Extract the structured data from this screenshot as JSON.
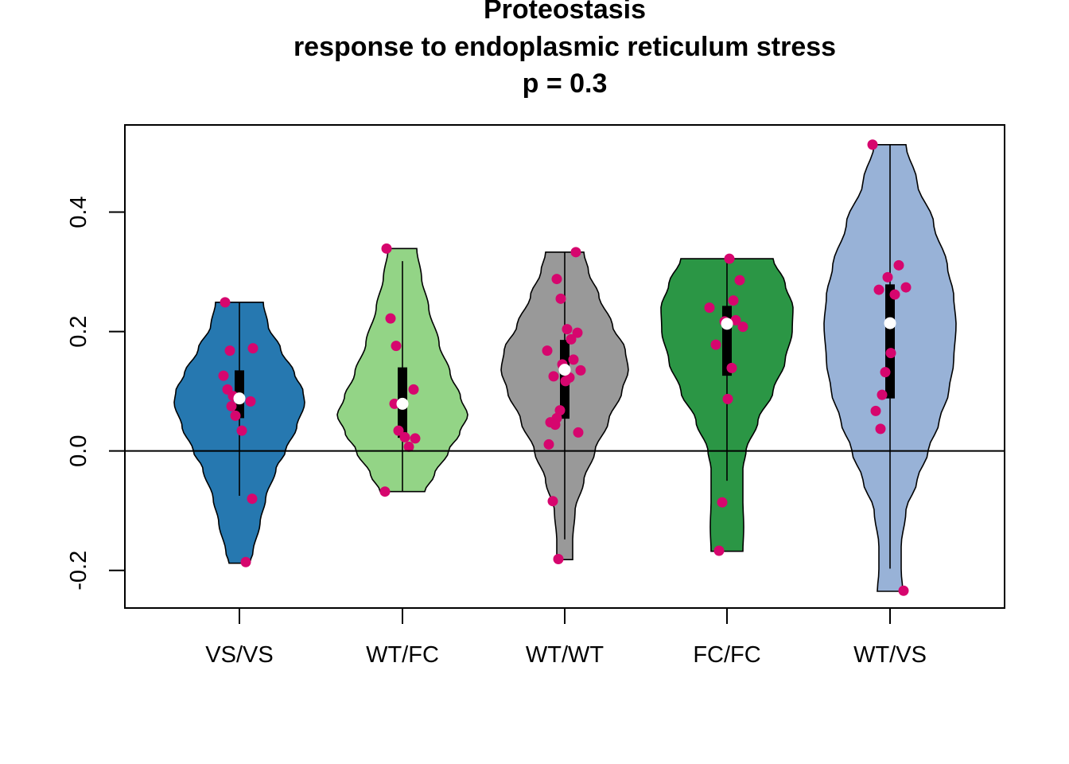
{
  "chart_data": {
    "type": "violin",
    "title": "Proteostasis",
    "subtitle": "response to endoplasmic reticulum stress",
    "annotation": "p = 0.3",
    "xlabel": "",
    "ylabel": "",
    "ylim": [
      -0.263,
      0.546
    ],
    "yticks": [
      "-0.2",
      "0.0",
      "0.2",
      "0.4"
    ],
    "reference_line_y": 0.0,
    "point_color": "#d6066e",
    "median_color": "#ffffff",
    "groups": [
      {
        "name": "VS/VS",
        "color": "#2678b0",
        "min": -0.188,
        "max": 0.249,
        "whisker_low": -0.075,
        "whisker_high": 0.249,
        "q1": 0.055,
        "q3": 0.135,
        "median": 0.088,
        "points": [
          0.249,
          0.168,
          0.172,
          0.126,
          0.103,
          0.092,
          0.083,
          0.075,
          0.059,
          0.034,
          -0.08,
          -0.186
        ]
      },
      {
        "name": "WT/FC",
        "color": "#93d486",
        "min": -0.068,
        "max": 0.339,
        "whisker_low": -0.068,
        "whisker_high": 0.318,
        "q1": 0.022,
        "q3": 0.14,
        "median": 0.079,
        "points": [
          0.339,
          0.222,
          0.176,
          0.103,
          0.079,
          0.034,
          0.023,
          0.021,
          0.007,
          -0.068
        ]
      },
      {
        "name": "WT/WT",
        "color": "#999999",
        "min": -0.182,
        "max": 0.333,
        "whisker_low": -0.148,
        "whisker_high": 0.333,
        "q1": 0.054,
        "q3": 0.186,
        "median": 0.136,
        "points": [
          0.333,
          0.288,
          0.255,
          0.204,
          0.198,
          0.187,
          0.168,
          0.153,
          0.145,
          0.135,
          0.125,
          0.123,
          0.117,
          0.068,
          0.055,
          0.048,
          0.044,
          0.031,
          0.011,
          -0.084,
          -0.181
        ]
      },
      {
        "name": "FC/FC",
        "color": "#2b9645",
        "min": -0.168,
        "max": 0.322,
        "whisker_low": -0.05,
        "whisker_high": 0.322,
        "q1": 0.126,
        "q3": 0.243,
        "median": 0.213,
        "points": [
          0.322,
          0.286,
          0.252,
          0.24,
          0.219,
          0.217,
          0.208,
          0.178,
          0.139,
          0.087,
          -0.086,
          -0.167
        ]
      },
      {
        "name": "WT/VS",
        "color": "#98b2d7",
        "min": -0.235,
        "max": 0.513,
        "whisker_low": -0.197,
        "whisker_high": 0.513,
        "q1": 0.088,
        "q3": 0.279,
        "median": 0.214,
        "points": [
          0.513,
          0.311,
          0.291,
          0.274,
          0.27,
          0.262,
          0.164,
          0.132,
          0.094,
          0.067,
          0.037,
          -0.234
        ]
      }
    ]
  }
}
